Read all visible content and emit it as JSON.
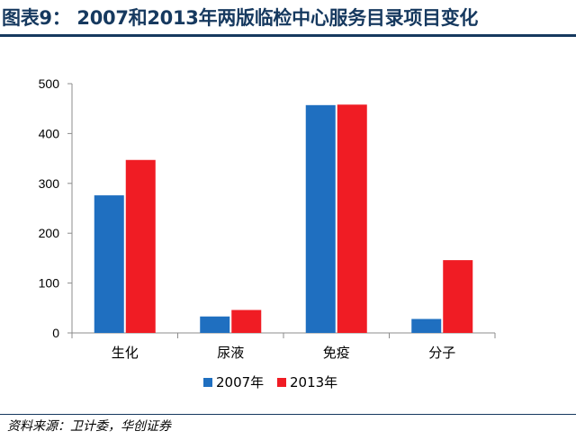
{
  "title": "图表9： 2007和2013年两版临检中心服务目录项目变化",
  "source": "资料来源：卫计委，华创证券",
  "colors": {
    "title": "#16395f",
    "series1": "#1f6fc0",
    "series2": "#f01c24"
  },
  "chart_data": {
    "type": "bar",
    "categories": [
      "生化",
      "尿液",
      "免疫",
      "分子"
    ],
    "series": [
      {
        "name": "2007年",
        "values": [
          276,
          33,
          457,
          28
        ]
      },
      {
        "name": "2013年",
        "values": [
          347,
          46,
          458,
          146
        ]
      }
    ],
    "ylim": [
      0,
      500
    ],
    "yticks": [
      0,
      100,
      200,
      300,
      400,
      500
    ],
    "ytick_labels": [
      "0",
      "100",
      "200",
      "300",
      "400",
      "500"
    ],
    "xlabel": "",
    "ylabel": "",
    "grid": false,
    "legend": "bottom"
  }
}
